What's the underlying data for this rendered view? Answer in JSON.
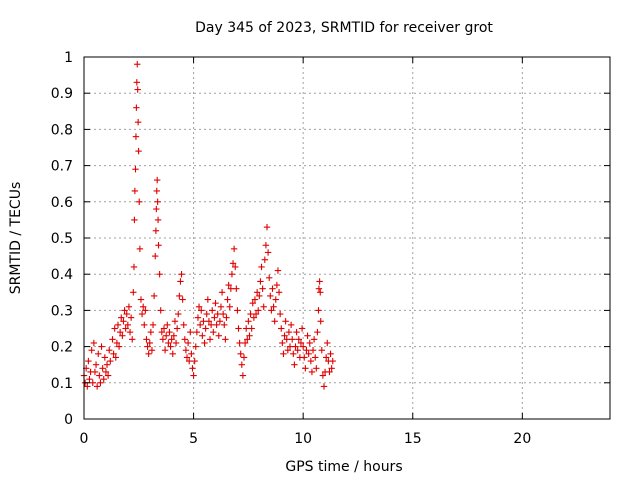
{
  "chart_data": {
    "type": "scatter",
    "title": "Day 345 of 2023, SRMTID for receiver grot",
    "xlabel": "GPS time / hours",
    "ylabel": "SRMTID / TECUs",
    "xlim": [
      0,
      24
    ],
    "ylim": [
      0,
      1
    ],
    "xticks": [
      0,
      5,
      10,
      15,
      20
    ],
    "yticks": [
      0,
      0.1,
      0.2,
      0.3,
      0.4,
      0.5,
      0.6,
      0.7,
      0.8,
      0.9,
      1
    ],
    "grid": true,
    "marker": "plus",
    "marker_color": "#e00000",
    "series": [
      {
        "name": "SRMTID",
        "points": [
          [
            0.0,
            0.12
          ],
          [
            0.05,
            0.1
          ],
          [
            0.1,
            0.14
          ],
          [
            0.15,
            0.09
          ],
          [
            0.2,
            0.16
          ],
          [
            0.25,
            0.11
          ],
          [
            0.3,
            0.13
          ],
          [
            0.35,
            0.19
          ],
          [
            0.4,
            0.1
          ],
          [
            0.45,
            0.21
          ],
          [
            0.5,
            0.13
          ],
          [
            0.55,
            0.15
          ],
          [
            0.6,
            0.09
          ],
          [
            0.65,
            0.18
          ],
          [
            0.7,
            0.12
          ],
          [
            0.75,
            0.1
          ],
          [
            0.8,
            0.2
          ],
          [
            0.85,
            0.14
          ],
          [
            0.9,
            0.11
          ],
          [
            0.95,
            0.17
          ],
          [
            1.0,
            0.13
          ],
          [
            1.05,
            0.15
          ],
          [
            1.1,
            0.12
          ],
          [
            1.15,
            0.19
          ],
          [
            1.2,
            0.16
          ],
          [
            1.3,
            0.22
          ],
          [
            1.35,
            0.18
          ],
          [
            1.4,
            0.25
          ],
          [
            1.45,
            0.17
          ],
          [
            1.5,
            0.21
          ],
          [
            1.55,
            0.26
          ],
          [
            1.6,
            0.2
          ],
          [
            1.65,
            0.24
          ],
          [
            1.7,
            0.28
          ],
          [
            1.75,
            0.23
          ],
          [
            1.8,
            0.27
          ],
          [
            1.85,
            0.3
          ],
          [
            1.9,
            0.25
          ],
          [
            1.95,
            0.29
          ],
          [
            2.0,
            0.26
          ],
          [
            2.05,
            0.31
          ],
          [
            2.1,
            0.24
          ],
          [
            2.15,
            0.28
          ],
          [
            2.2,
            0.22
          ],
          [
            2.25,
            0.35
          ],
          [
            2.28,
            0.42
          ],
          [
            2.3,
            0.55
          ],
          [
            2.32,
            0.63
          ],
          [
            2.35,
            0.69
          ],
          [
            2.37,
            0.78
          ],
          [
            2.39,
            0.86
          ],
          [
            2.41,
            0.93
          ],
          [
            2.43,
            0.98
          ],
          [
            2.45,
            0.91
          ],
          [
            2.47,
            0.82
          ],
          [
            2.49,
            0.74
          ],
          [
            2.52,
            0.6
          ],
          [
            2.55,
            0.47
          ],
          [
            2.6,
            0.33
          ],
          [
            2.65,
            0.29
          ],
          [
            2.7,
            0.31
          ],
          [
            2.75,
            0.26
          ],
          [
            2.8,
            0.3
          ],
          [
            2.85,
            0.22
          ],
          [
            2.9,
            0.2
          ],
          [
            2.95,
            0.18
          ],
          [
            3.0,
            0.21
          ],
          [
            3.05,
            0.24
          ],
          [
            3.1,
            0.19
          ],
          [
            3.15,
            0.26
          ],
          [
            3.2,
            0.34
          ],
          [
            3.25,
            0.45
          ],
          [
            3.28,
            0.52
          ],
          [
            3.3,
            0.58
          ],
          [
            3.32,
            0.63
          ],
          [
            3.34,
            0.66
          ],
          [
            3.36,
            0.6
          ],
          [
            3.38,
            0.55
          ],
          [
            3.4,
            0.48
          ],
          [
            3.45,
            0.4
          ],
          [
            3.5,
            0.3
          ],
          [
            3.55,
            0.24
          ],
          [
            3.6,
            0.22
          ],
          [
            3.65,
            0.25
          ],
          [
            3.7,
            0.19
          ],
          [
            3.75,
            0.23
          ],
          [
            3.8,
            0.26
          ],
          [
            3.85,
            0.21
          ],
          [
            3.9,
            0.24
          ],
          [
            3.95,
            0.2
          ],
          [
            4.0,
            0.22
          ],
          [
            4.05,
            0.18
          ],
          [
            4.1,
            0.23
          ],
          [
            4.15,
            0.27
          ],
          [
            4.2,
            0.21
          ],
          [
            4.25,
            0.25
          ],
          [
            4.3,
            0.29
          ],
          [
            4.35,
            0.34
          ],
          [
            4.4,
            0.38
          ],
          [
            4.45,
            0.4
          ],
          [
            4.5,
            0.33
          ],
          [
            4.55,
            0.26
          ],
          [
            4.6,
            0.22
          ],
          [
            4.65,
            0.19
          ],
          [
            4.7,
            0.17
          ],
          [
            4.75,
            0.21
          ],
          [
            4.8,
            0.16
          ],
          [
            4.85,
            0.24
          ],
          [
            4.9,
            0.18
          ],
          [
            4.95,
            0.14
          ],
          [
            5.0,
            0.12
          ],
          [
            5.05,
            0.16
          ],
          [
            5.1,
            0.2
          ],
          [
            5.15,
            0.24
          ],
          [
            5.2,
            0.28
          ],
          [
            5.25,
            0.31
          ],
          [
            5.3,
            0.26
          ],
          [
            5.35,
            0.3
          ],
          [
            5.4,
            0.23
          ],
          [
            5.45,
            0.27
          ],
          [
            5.5,
            0.21
          ],
          [
            5.55,
            0.25
          ],
          [
            5.6,
            0.29
          ],
          [
            5.65,
            0.33
          ],
          [
            5.7,
            0.27
          ],
          [
            5.75,
            0.22
          ],
          [
            5.8,
            0.26
          ],
          [
            5.85,
            0.3
          ],
          [
            5.9,
            0.24
          ],
          [
            5.95,
            0.28
          ],
          [
            6.0,
            0.32
          ],
          [
            6.05,
            0.26
          ],
          [
            6.1,
            0.29
          ],
          [
            6.15,
            0.23
          ],
          [
            6.2,
            0.27
          ],
          [
            6.25,
            0.31
          ],
          [
            6.3,
            0.35
          ],
          [
            6.35,
            0.29
          ],
          [
            6.4,
            0.26
          ],
          [
            6.45,
            0.22
          ],
          [
            6.5,
            0.28
          ],
          [
            6.55,
            0.33
          ],
          [
            6.6,
            0.37
          ],
          [
            6.65,
            0.31
          ],
          [
            6.7,
            0.36
          ],
          [
            6.75,
            0.4
          ],
          [
            6.8,
            0.43
          ],
          [
            6.85,
            0.47
          ],
          [
            6.9,
            0.42
          ],
          [
            6.95,
            0.36
          ],
          [
            7.0,
            0.3
          ],
          [
            7.05,
            0.25
          ],
          [
            7.1,
            0.21
          ],
          [
            7.15,
            0.18
          ],
          [
            7.2,
            0.15
          ],
          [
            7.25,
            0.12
          ],
          [
            7.3,
            0.17
          ],
          [
            7.35,
            0.21
          ],
          [
            7.4,
            0.25
          ],
          [
            7.45,
            0.22
          ],
          [
            7.5,
            0.27
          ],
          [
            7.55,
            0.23
          ],
          [
            7.6,
            0.29
          ],
          [
            7.65,
            0.25
          ],
          [
            7.7,
            0.32
          ],
          [
            7.75,
            0.28
          ],
          [
            7.8,
            0.33
          ],
          [
            7.85,
            0.29
          ],
          [
            7.9,
            0.35
          ],
          [
            7.95,
            0.3
          ],
          [
            8.0,
            0.34
          ],
          [
            8.05,
            0.38
          ],
          [
            8.1,
            0.42
          ],
          [
            8.15,
            0.36
          ],
          [
            8.2,
            0.31
          ],
          [
            8.25,
            0.44
          ],
          [
            8.3,
            0.48
          ],
          [
            8.35,
            0.53
          ],
          [
            8.4,
            0.46
          ],
          [
            8.45,
            0.39
          ],
          [
            8.5,
            0.34
          ],
          [
            8.55,
            0.3
          ],
          [
            8.6,
            0.36
          ],
          [
            8.65,
            0.31
          ],
          [
            8.7,
            0.27
          ],
          [
            8.75,
            0.33
          ],
          [
            8.8,
            0.37
          ],
          [
            8.85,
            0.41
          ],
          [
            8.9,
            0.35
          ],
          [
            8.95,
            0.29
          ],
          [
            9.0,
            0.25
          ],
          [
            9.05,
            0.21
          ],
          [
            9.1,
            0.18
          ],
          [
            9.15,
            0.23
          ],
          [
            9.2,
            0.27
          ],
          [
            9.25,
            0.22
          ],
          [
            9.3,
            0.19
          ],
          [
            9.35,
            0.24
          ],
          [
            9.4,
            0.2
          ],
          [
            9.45,
            0.26
          ],
          [
            9.5,
            0.22
          ],
          [
            9.55,
            0.18
          ],
          [
            9.6,
            0.15
          ],
          [
            9.65,
            0.2
          ],
          [
            9.7,
            0.24
          ],
          [
            9.75,
            0.19
          ],
          [
            9.8,
            0.22
          ],
          [
            9.85,
            0.17
          ],
          [
            9.9,
            0.21
          ],
          [
            9.95,
            0.25
          ],
          [
            10.0,
            0.2
          ],
          [
            10.05,
            0.17
          ],
          [
            10.1,
            0.14
          ],
          [
            10.15,
            0.19
          ],
          [
            10.2,
            0.23
          ],
          [
            10.25,
            0.18
          ],
          [
            10.3,
            0.21
          ],
          [
            10.35,
            0.16
          ],
          [
            10.4,
            0.13
          ],
          [
            10.45,
            0.19
          ],
          [
            10.5,
            0.22
          ],
          [
            10.55,
            0.17
          ],
          [
            10.6,
            0.14
          ],
          [
            10.65,
            0.24
          ],
          [
            10.7,
            0.3
          ],
          [
            10.72,
            0.36
          ],
          [
            10.75,
            0.38
          ],
          [
            10.78,
            0.35
          ],
          [
            10.8,
            0.27
          ],
          [
            10.85,
            0.19
          ],
          [
            10.9,
            0.12
          ],
          [
            10.95,
            0.09
          ],
          [
            11.0,
            0.13
          ],
          [
            11.05,
            0.17
          ],
          [
            11.1,
            0.21
          ],
          [
            11.15,
            0.16
          ],
          [
            11.2,
            0.13
          ],
          [
            11.25,
            0.18
          ],
          [
            11.3,
            0.14
          ],
          [
            11.35,
            0.16
          ]
        ]
      }
    ]
  }
}
